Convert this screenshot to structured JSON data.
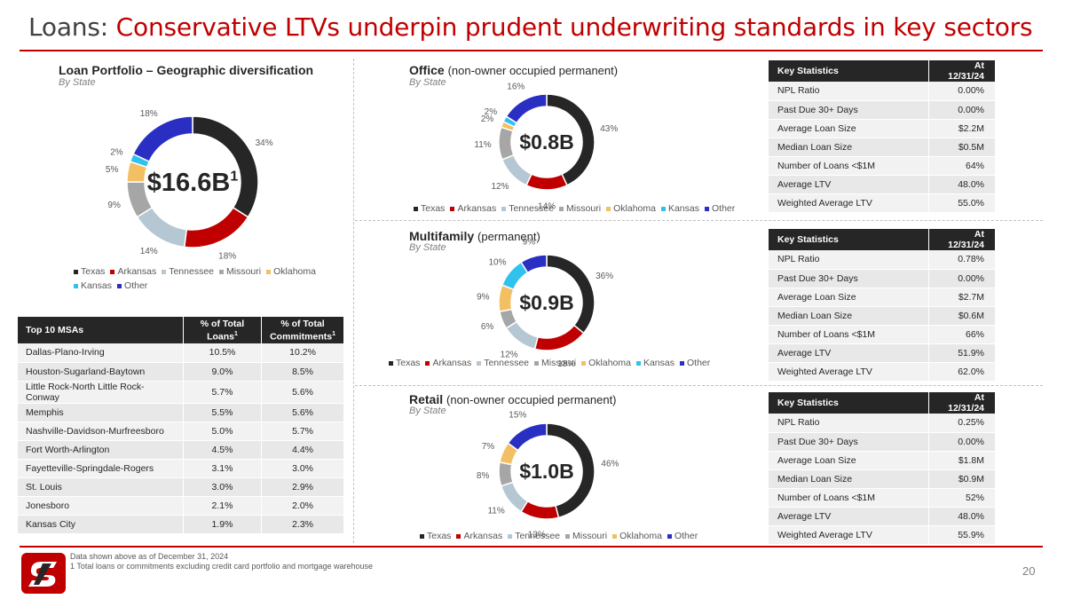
{
  "header": {
    "title_prefix": "Loans: ",
    "title_main": "Conservative LTVs underpin prudent underwriting standards in key sectors"
  },
  "colors": {
    "accent": "#c00000",
    "texas": "#262626",
    "arkansas": "#c00000",
    "tennessee": "#b4c7d3",
    "missouri": "#a6a6a6",
    "oklahoma": "#f2c063",
    "kansas": "#2fc2ee",
    "other": "#2a2fc4"
  },
  "portfolio": {
    "title": "Loan Portfolio – Geographic diversification",
    "subtitle": "By State",
    "center_value": "$16.6B",
    "center_sup": "1",
    "legend": [
      "Texas",
      "Arkansas",
      "Tennessee",
      "Missouri",
      "Oklahoma",
      "Kansas",
      "Other"
    ]
  },
  "office": {
    "title": "Office",
    "title_note": "(non-owner occupied permanent)",
    "subtitle": "By State",
    "center_value": "$0.8B",
    "legend": [
      "Texas",
      "Arkansas",
      "Tennessee",
      "Missouri",
      "Oklahoma",
      "Kansas",
      "Other"
    ],
    "stats_header": [
      "Key Statistics",
      "At 12/31/24"
    ],
    "stats": [
      [
        "NPL Ratio",
        "0.00%"
      ],
      [
        "Past Due 30+ Days",
        "0.00%"
      ],
      [
        "Average Loan Size",
        "$2.2M"
      ],
      [
        "Median Loan Size",
        "$0.5M"
      ],
      [
        "Number of Loans <$1M",
        "64%"
      ],
      [
        "Average LTV",
        "48.0%"
      ],
      [
        "Weighted Average LTV",
        "55.0%"
      ]
    ]
  },
  "multifamily": {
    "title": "Multifamily",
    "title_note": "(permanent)",
    "subtitle": "By State",
    "center_value": "$0.9B",
    "legend": [
      "Texas",
      "Arkansas",
      "Tennessee",
      "Missouri",
      "Oklahoma",
      "Kansas",
      "Other"
    ],
    "stats_header": [
      "Key Statistics",
      "At 12/31/24"
    ],
    "stats": [
      [
        "NPL Ratio",
        "0.78%"
      ],
      [
        "Past Due 30+ Days",
        "0.00%"
      ],
      [
        "Average Loan Size",
        "$2.7M"
      ],
      [
        "Median Loan Size",
        "$0.6M"
      ],
      [
        "Number of Loans <$1M",
        "66%"
      ],
      [
        "Average LTV",
        "51.9%"
      ],
      [
        "Weighted Average LTV",
        "62.0%"
      ]
    ]
  },
  "retail": {
    "title": "Retail",
    "title_note": "(non-owner occupied permanent)",
    "subtitle": "By State",
    "center_value": "$1.0B",
    "legend": [
      "Texas",
      "Arkansas",
      "Tennessee",
      "Missouri",
      "Oklahoma",
      "Other"
    ],
    "stats_header": [
      "Key Statistics",
      "At 12/31/24"
    ],
    "stats": [
      [
        "NPL Ratio",
        "0.25%"
      ],
      [
        "Past Due 30+ Days",
        "0.00%"
      ],
      [
        "Average Loan Size",
        "$1.8M"
      ],
      [
        "Median Loan Size",
        "$0.9M"
      ],
      [
        "Number of Loans <$1M",
        "52%"
      ],
      [
        "Average LTV",
        "48.0%"
      ],
      [
        "Weighted Average LTV",
        "55.9%"
      ]
    ]
  },
  "msa_table": {
    "headers": [
      "Top 10 MSAs",
      "% of Total Loans",
      "% of Total Commitments"
    ],
    "header_sup": "1",
    "rows": [
      [
        "Dallas-Plano-Irving",
        "10.5%",
        "10.2%"
      ],
      [
        "Houston-Sugarland-Baytown",
        "9.0%",
        "8.5%"
      ],
      [
        "Little Rock-North Little Rock-Conway",
        "5.7%",
        "5.6%"
      ],
      [
        "Memphis",
        "5.5%",
        "5.6%"
      ],
      [
        "Nashville-Davidson-Murfreesboro",
        "5.0%",
        "5.7%"
      ],
      [
        "Fort Worth-Arlington",
        "4.5%",
        "4.4%"
      ],
      [
        "Fayetteville-Springdale-Rogers",
        "3.1%",
        "3.0%"
      ],
      [
        "St. Louis",
        "3.0%",
        "2.9%"
      ],
      [
        "Jonesboro",
        "2.1%",
        "2.0%"
      ],
      [
        "Kansas City",
        "1.9%",
        "2.3%"
      ]
    ]
  },
  "footer": {
    "note1": "Data shown above as of December 31, 2024",
    "note2": "1   Total loans or commitments excluding credit card portfolio and mortgage warehouse",
    "page_number": "20",
    "logo_icon": "company-logo-icon"
  },
  "chart_data": [
    {
      "type": "pie",
      "name_ref": "portfolio",
      "categories": [
        "Texas",
        "Arkansas",
        "Tennessee",
        "Missouri",
        "Oklahoma",
        "Kansas",
        "Other"
      ],
      "values": [
        34,
        18,
        14,
        9,
        5,
        2,
        18
      ],
      "labels": [
        "34%",
        "18%",
        "14%",
        "9%",
        "5%",
        "2%",
        "18%"
      ],
      "legend_position": "bottom"
    },
    {
      "type": "pie",
      "name_ref": "office",
      "categories": [
        "Texas",
        "Arkansas",
        "Tennessee",
        "Missouri",
        "Oklahoma",
        "Kansas",
        "Other"
      ],
      "values": [
        43,
        14,
        12,
        11,
        2,
        2,
        16
      ],
      "labels": [
        "43%",
        "14%",
        "12%",
        "11%",
        "2%",
        "2%",
        "16%"
      ],
      "legend_position": "bottom"
    },
    {
      "type": "pie",
      "name_ref": "multifamily",
      "categories": [
        "Texas",
        "Arkansas",
        "Tennessee",
        "Missouri",
        "Oklahoma",
        "Kansas",
        "Other"
      ],
      "values": [
        36,
        18,
        12,
        6,
        9,
        10,
        9
      ],
      "labels": [
        "36%",
        "18%",
        "12%",
        "6%",
        "9%",
        "10%",
        "9%"
      ],
      "legend_position": "bottom"
    },
    {
      "type": "pie",
      "name_ref": "retail",
      "categories": [
        "Texas",
        "Arkansas",
        "Tennessee",
        "Missouri",
        "Oklahoma",
        "Other"
      ],
      "values": [
        46,
        13,
        11,
        8,
        7,
        15
      ],
      "labels": [
        "46%",
        "13%",
        "11%",
        "8%",
        "7%",
        "15%"
      ],
      "legend_position": "bottom"
    }
  ]
}
